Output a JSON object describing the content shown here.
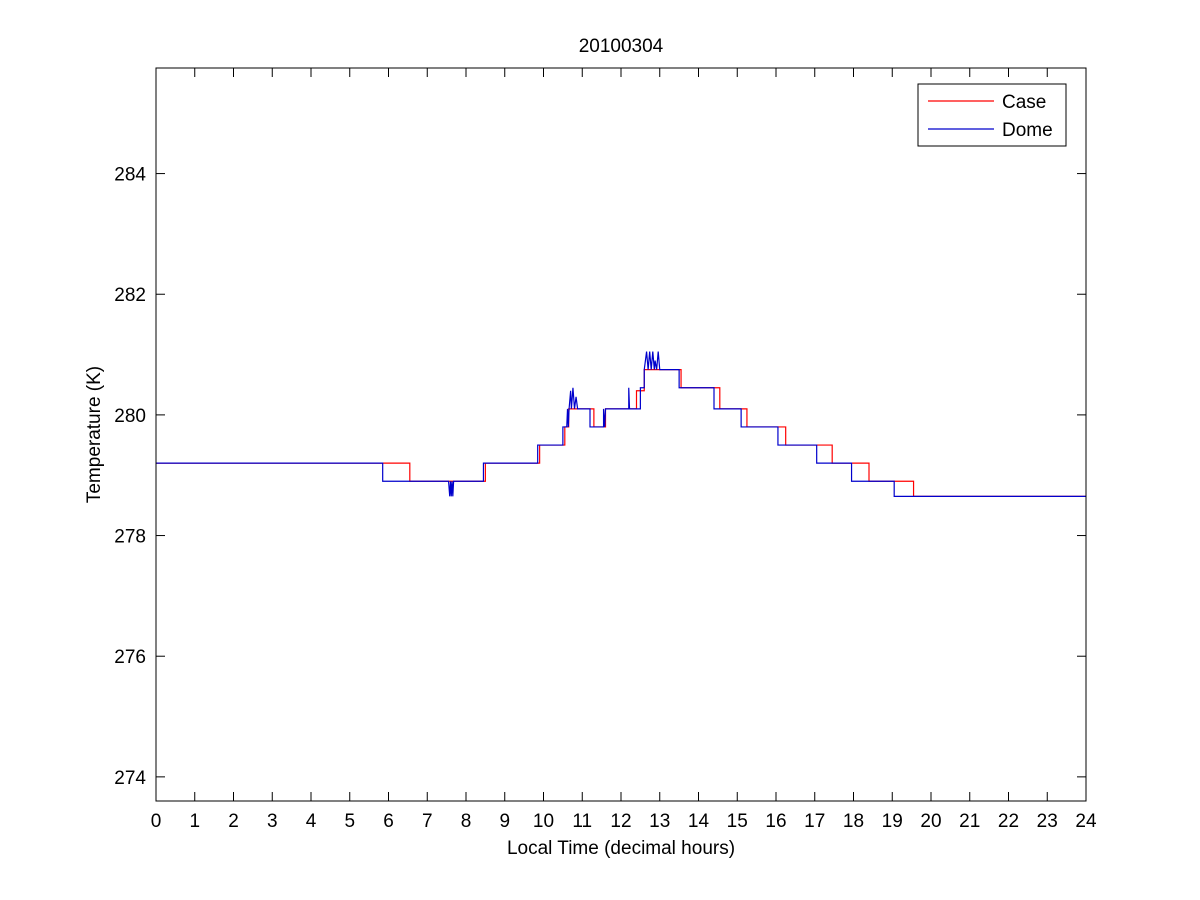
{
  "chart_data": {
    "type": "line",
    "title": "20100304",
    "xlabel": "Local Time (decimal hours)",
    "ylabel": "Temperature (K)",
    "xlim": [
      0,
      24
    ],
    "ylim": [
      273.6,
      285.75
    ],
    "xticks": [
      0,
      1,
      2,
      3,
      4,
      5,
      6,
      7,
      8,
      9,
      10,
      11,
      12,
      13,
      14,
      15,
      16,
      17,
      18,
      19,
      20,
      21,
      22,
      23,
      24
    ],
    "xtick_labels": [
      "0",
      "1",
      "2",
      "3",
      "4",
      "5",
      "6",
      "7",
      "8",
      "9",
      "10",
      "11",
      "12",
      "13",
      "14",
      "15",
      "16",
      "17",
      "18",
      "19",
      "20",
      "21",
      "22",
      "23",
      "24"
    ],
    "yticks": [
      274,
      276,
      278,
      280,
      282,
      284
    ],
    "ytick_labels": [
      "274",
      "276",
      "278",
      "280",
      "282",
      "284"
    ],
    "grid": false,
    "legend_position": "top-right",
    "series": [
      {
        "name": "Case",
        "color": "#ff0000",
        "x": [
          0,
          6.55,
          6.55,
          8.5,
          8.5,
          9.9,
          9.9,
          10.55,
          10.55,
          10.65,
          10.65,
          10.9,
          10.9,
          11.3,
          11.3,
          11.6,
          11.6,
          12.4,
          12.4,
          12.6,
          12.6,
          12.75,
          12.75,
          13.55,
          13.55,
          14.55,
          14.55,
          15.25,
          15.25,
          16.25,
          16.25,
          17.45,
          17.45,
          18.4,
          18.4,
          19.55,
          19.55,
          24
        ],
        "y": [
          279.2,
          279.2,
          278.9,
          278.9,
          279.2,
          279.2,
          279.5,
          279.5,
          279.8,
          279.8,
          280.1,
          280.1,
          280.1,
          280.1,
          279.8,
          279.8,
          280.1,
          280.1,
          280.4,
          280.4,
          280.75,
          280.75,
          280.75,
          280.75,
          280.45,
          280.45,
          280.1,
          280.1,
          279.8,
          279.8,
          279.5,
          279.5,
          279.2,
          279.2,
          278.9,
          278.9,
          278.65,
          278.65
        ]
      },
      {
        "name": "Dome",
        "color": "#0000cc",
        "x": [
          0,
          5.85,
          5.85,
          7.55,
          7.58,
          7.6,
          7.62,
          7.64,
          7.66,
          7.68,
          7.7,
          8.45,
          8.45,
          9.85,
          9.85,
          10.5,
          10.5,
          10.6,
          10.62,
          10.64,
          10.66,
          10.7,
          10.72,
          10.76,
          10.8,
          10.84,
          10.88,
          10.9,
          10.92,
          11.2,
          11.2,
          11.55,
          11.55,
          11.58,
          11.6,
          11.6,
          12.2,
          12.2,
          12.22,
          12.24,
          12.5,
          12.5,
          12.6,
          12.6,
          12.66,
          12.7,
          12.74,
          12.78,
          12.82,
          12.86,
          12.88,
          12.92,
          12.96,
          13.0,
          13.0,
          13.5,
          13.5,
          14.4,
          14.4,
          15.1,
          15.1,
          16.05,
          16.05,
          17.05,
          17.05,
          17.95,
          17.95,
          19.05,
          19.05,
          24
        ],
        "y": [
          279.2,
          279.2,
          278.9,
          278.9,
          278.65,
          278.9,
          278.65,
          278.9,
          278.65,
          278.9,
          278.9,
          278.9,
          279.2,
          279.2,
          279.5,
          279.5,
          279.8,
          279.8,
          280.1,
          279.8,
          280.1,
          280.4,
          280.1,
          280.45,
          280.1,
          280.3,
          280.1,
          280.1,
          280.1,
          280.1,
          279.8,
          279.8,
          280.1,
          279.8,
          280.1,
          280.1,
          280.1,
          280.45,
          280.1,
          280.1,
          280.1,
          280.45,
          280.45,
          280.75,
          281.05,
          280.75,
          281.05,
          280.75,
          281.05,
          280.75,
          280.9,
          280.75,
          281.05,
          280.75,
          280.75,
          280.75,
          280.45,
          280.45,
          280.1,
          280.1,
          279.8,
          279.8,
          279.5,
          279.5,
          279.2,
          279.2,
          278.9,
          278.9,
          278.65,
          278.65
        ]
      }
    ]
  }
}
